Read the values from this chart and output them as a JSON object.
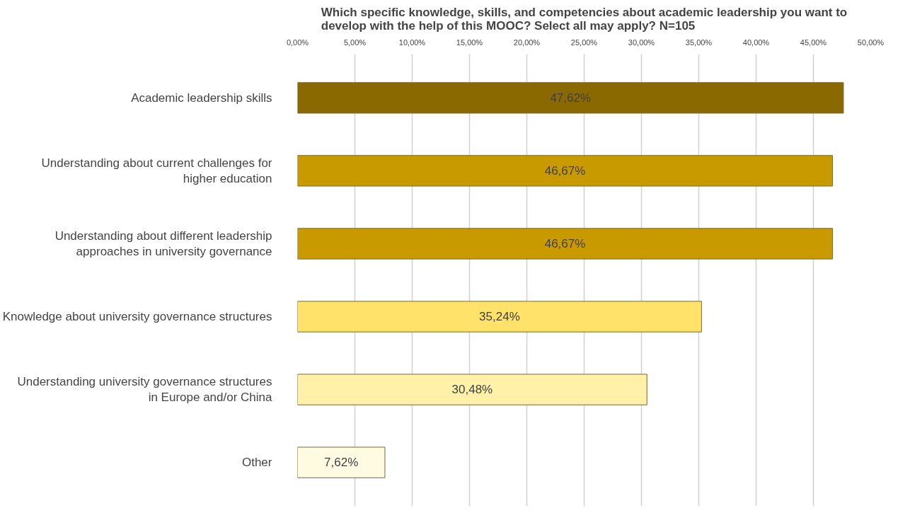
{
  "chart_data": {
    "type": "bar",
    "orientation": "horizontal",
    "title": "Which specific knowledge, skills, and competencies about academic leadership you want to develop with the help of this MOOC? Select all may apply? N=105",
    "categories": [
      "Academic leadership skills",
      "Understanding about current challenges for higher education",
      "Understanding about different leadership approaches in university governance",
      "Knowledge about university governance structures",
      "Understanding university governance structures in Europe and/or China",
      "Other"
    ],
    "values": [
      47.62,
      46.67,
      46.67,
      35.24,
      30.48,
      7.62
    ],
    "colors": [
      "#8a6a00",
      "#c99a00",
      "#c99a00",
      "#ffe26a",
      "#fff2a8",
      "#fffbe3"
    ],
    "value_labels": [
      "47,62%",
      "46,67%",
      "46,67%",
      "35,24%",
      "30,48%",
      "7,62%"
    ],
    "xlim": [
      0,
      50
    ],
    "xticks": [
      {
        "value": 0,
        "label": "0,00%"
      },
      {
        "value": 5,
        "label": "5,00%"
      },
      {
        "value": 10,
        "label": "10,00%"
      },
      {
        "value": 15,
        "label": "15,00%"
      },
      {
        "value": 20,
        "label": "20,00%"
      },
      {
        "value": 25,
        "label": "25,00%"
      },
      {
        "value": 30,
        "label": "30,00%"
      },
      {
        "value": 35,
        "label": "35,00%"
      },
      {
        "value": 40,
        "label": "40,00%"
      },
      {
        "value": 45,
        "label": "45,00%"
      },
      {
        "value": 50,
        "label": "50,00%"
      }
    ],
    "grid": "x"
  }
}
